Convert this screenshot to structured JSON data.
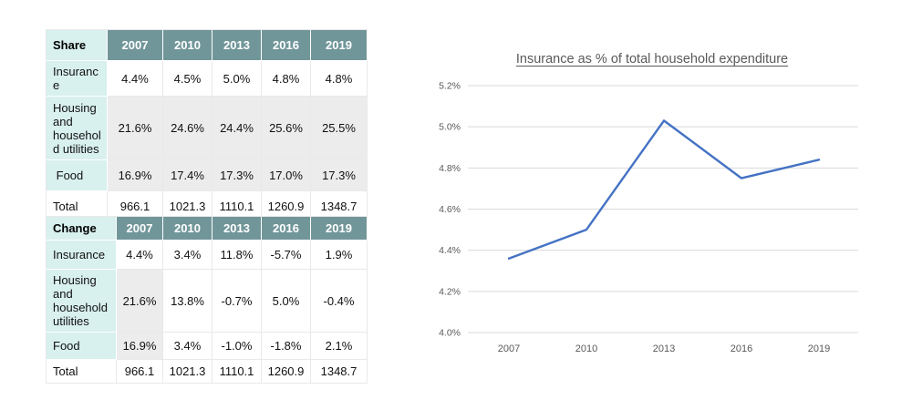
{
  "tables": [
    {
      "title": "Share",
      "years": [
        "2007",
        "2010",
        "2013",
        "2016",
        "2019"
      ],
      "rows": [
        {
          "label": "Insurance",
          "values": [
            "4.4%",
            "4.5%",
            "5.0%",
            "4.8%",
            "4.8%"
          ]
        },
        {
          "label": "Housing\nand\nhousehol\nd utilities",
          "values": [
            "21.6%",
            "24.6%",
            "24.4%",
            "25.6%",
            "25.5%"
          ]
        },
        {
          "label": " Food",
          "values": [
            "16.9%",
            "17.4%",
            "17.3%",
            "17.0%",
            "17.3%"
          ]
        },
        {
          "label": "Total",
          "values": [
            "966.1",
            "1021.3",
            "1110.1",
            "1260.9",
            "1348.7"
          ]
        }
      ]
    },
    {
      "title": "Change",
      "years": [
        "2007",
        "2010",
        "2013",
        "2016",
        "2019"
      ],
      "rows": [
        {
          "label": "Insurance",
          "values": [
            "4.4%",
            "3.4%",
            "11.8%",
            "-5.7%",
            "1.9%"
          ]
        },
        {
          "label": "Housing\nand\nhousehold\nutilities",
          "values": [
            "21.6%",
            "13.8%",
            "-0.7%",
            "5.0%",
            "-0.4%"
          ]
        },
        {
          "label": "Food",
          "values": [
            "16.9%",
            "3.4%",
            "-1.0%",
            "-1.8%",
            "2.1%"
          ]
        },
        {
          "label": "Total",
          "values": [
            "966.1",
            "1021.3",
            "1110.1",
            "1260.9",
            "1348.7"
          ]
        }
      ]
    }
  ],
  "chart_data": {
    "type": "line",
    "title": "Insurance as % of total household expenditure",
    "x": [
      "2007",
      "2010",
      "2013",
      "2016",
      "2019"
    ],
    "series": [
      {
        "name": "Insurance as % of total household expenditure",
        "values": [
          4.36,
          4.5,
          5.03,
          4.75,
          4.84
        ]
      }
    ],
    "ylim": [
      4.0,
      5.2
    ],
    "yticks": [
      "4.0%",
      "4.2%",
      "4.4%",
      "4.6%",
      "4.8%",
      "5.0%",
      "5.2%"
    ],
    "xlabel": "",
    "ylabel": "",
    "grid": true,
    "legend_position": "none",
    "colors": {
      "line": "#4472C4",
      "title": "#595959",
      "tick": "#595959",
      "gridline": "#D9D9D9"
    }
  }
}
